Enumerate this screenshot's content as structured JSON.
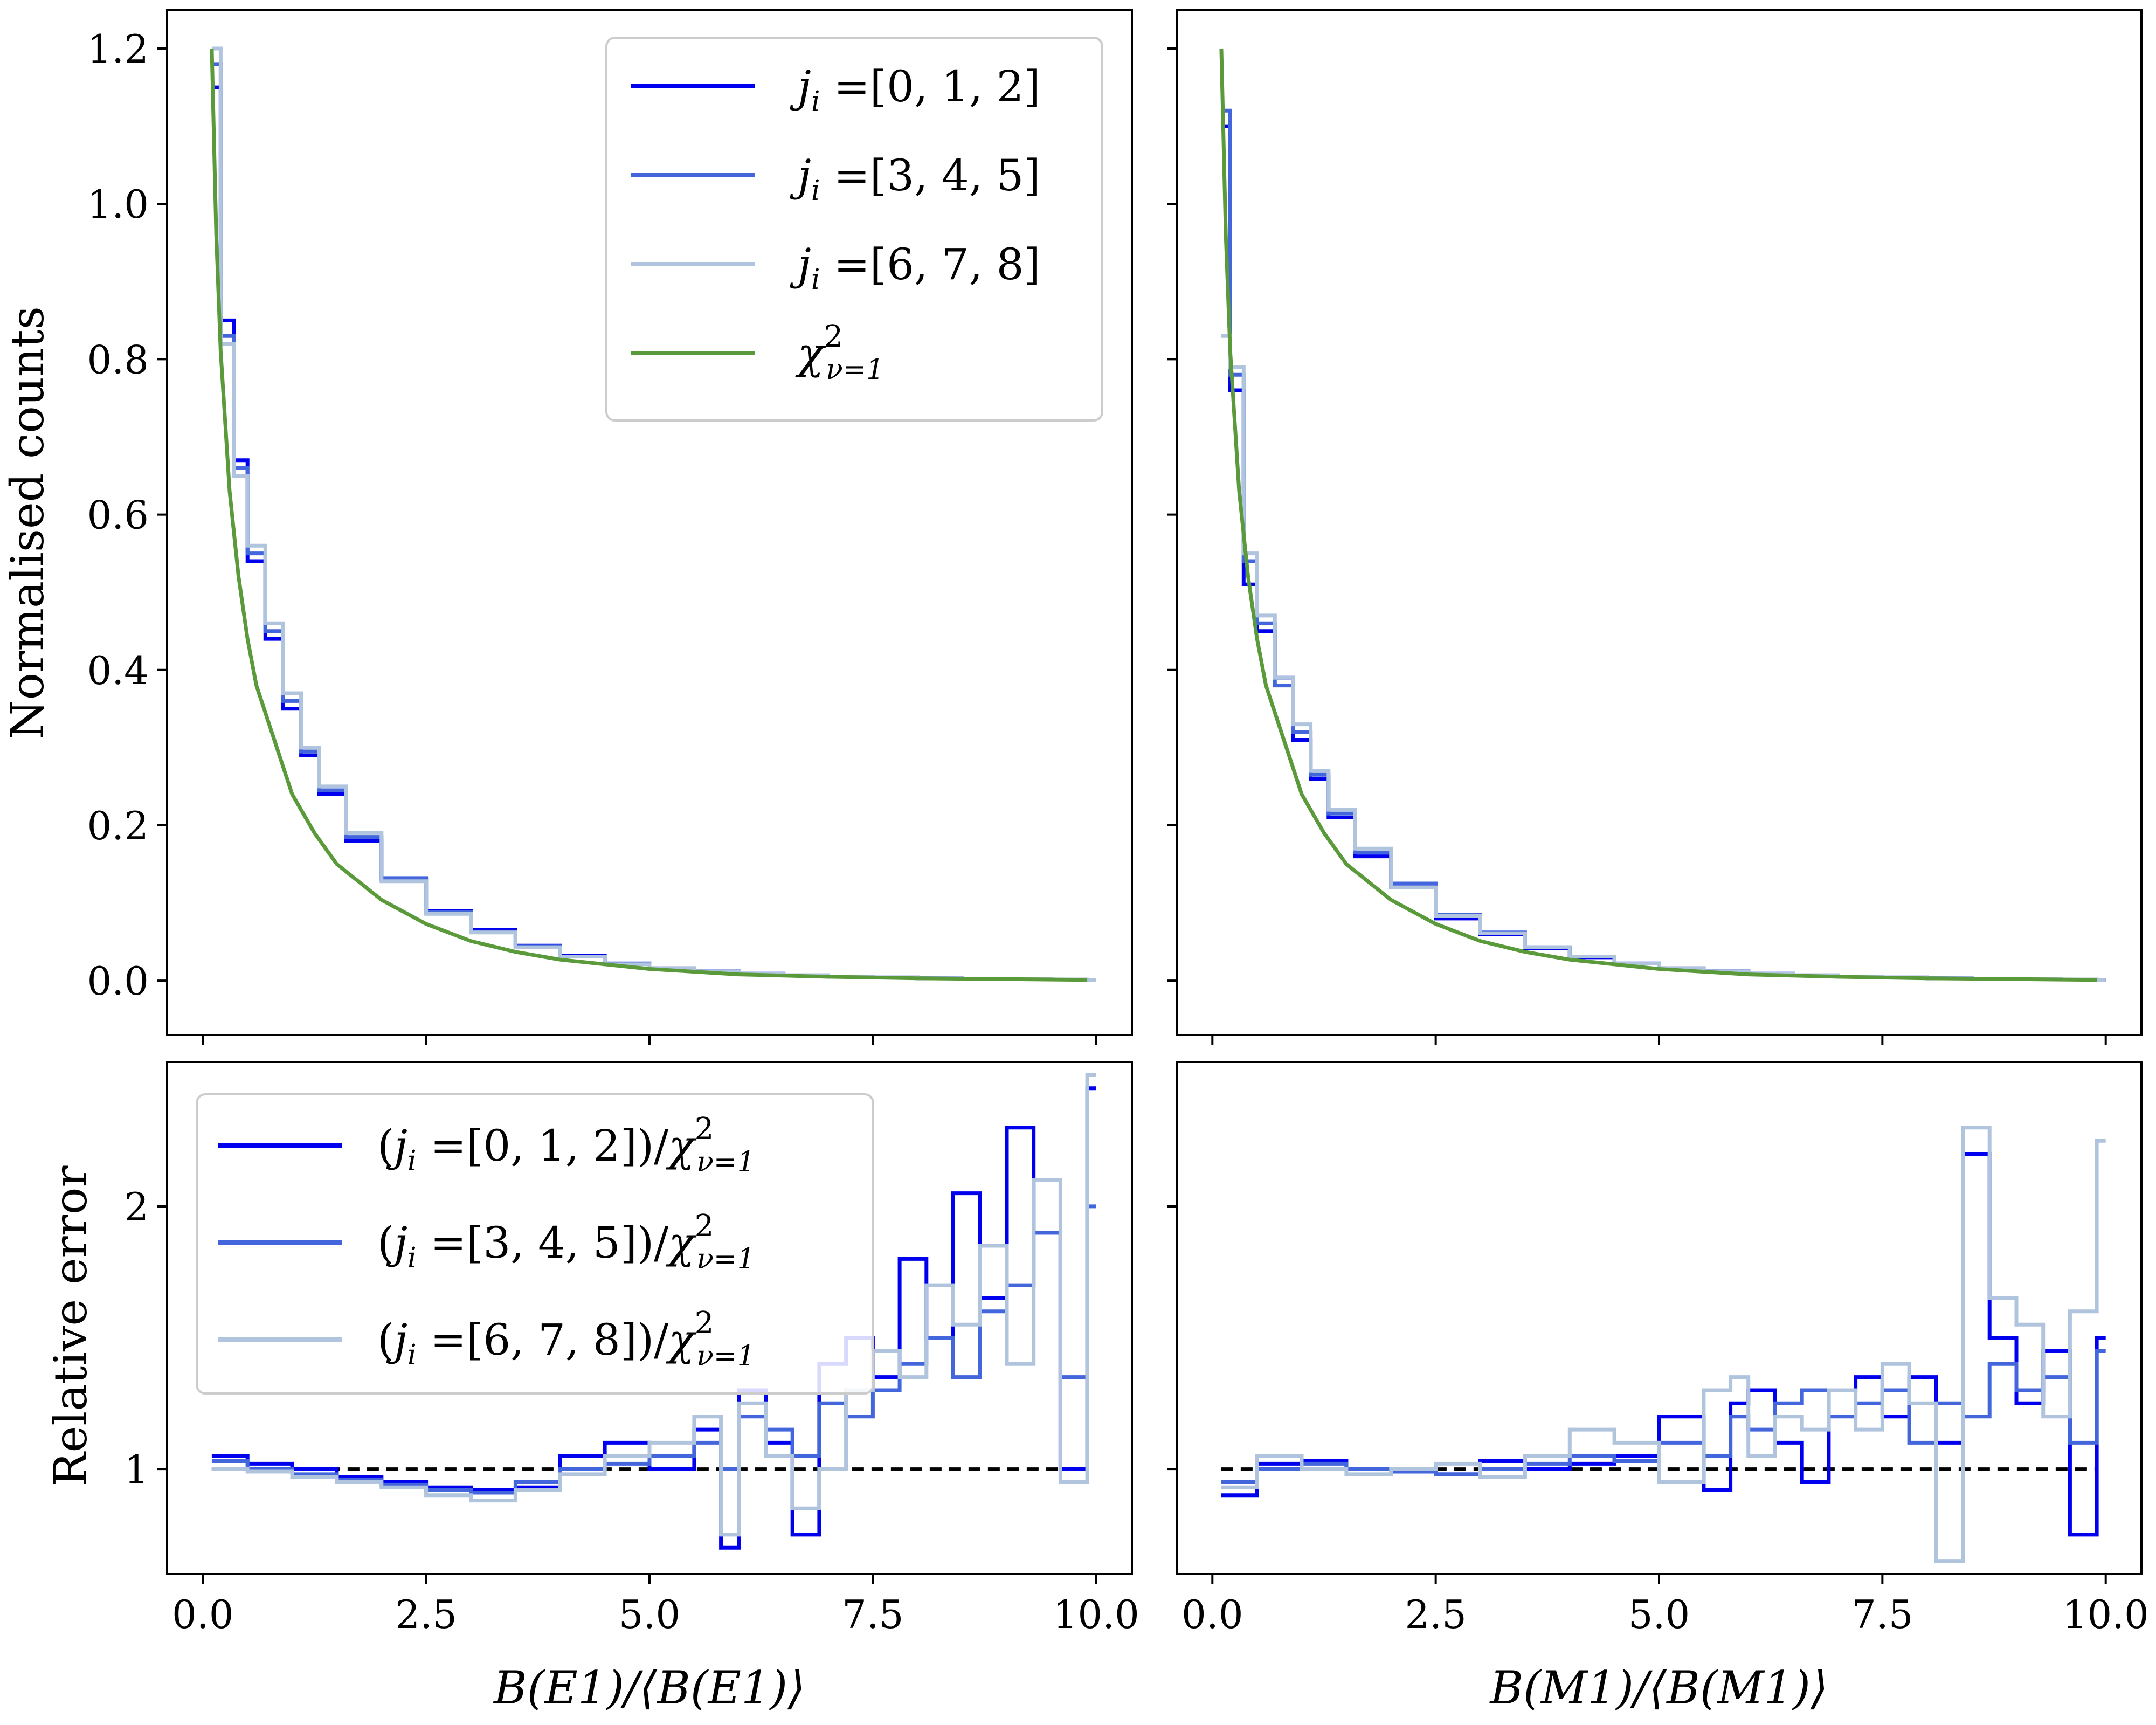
{
  "chart_data": [
    {
      "id": "E1-counts",
      "type": "line",
      "ylabel": "Normalised counts",
      "xlim": [
        -0.4,
        10.4
      ],
      "ylim": [
        -0.07,
        1.25
      ],
      "yticks": [
        0.0,
        0.2,
        0.4,
        0.6,
        0.8,
        1.0,
        1.2
      ],
      "ytick_labels": [
        "0.0",
        "0.2",
        "0.4",
        "0.6",
        "0.8",
        "1.0",
        "1.2"
      ],
      "xticks": [
        0,
        2.5,
        5.0,
        7.5,
        10.0
      ],
      "legend": [
        "j_i =[0, 1, 2]",
        "j_i =[3, 4, 5]",
        "j_i =[6, 7, 8]",
        "χ²_{ν=1}"
      ],
      "legend_position": "top-right",
      "series": [
        {
          "name": "j_i =[0, 1, 2]",
          "style": "step",
          "x": [
            0.1,
            0.2,
            0.35,
            0.5,
            0.7,
            0.9,
            1.1,
            1.3,
            1.6,
            2.0,
            2.5,
            3.0,
            3.5,
            4.0,
            4.5,
            5.0,
            5.5,
            6.0,
            6.5,
            7.0,
            7.5,
            8.0,
            8.5,
            9.0,
            9.5,
            9.9
          ],
          "y": [
            1.15,
            0.85,
            0.67,
            0.54,
            0.44,
            0.35,
            0.29,
            0.24,
            0.18,
            0.13,
            0.09,
            0.065,
            0.045,
            0.032,
            0.022,
            0.016,
            0.012,
            0.009,
            0.007,
            0.005,
            0.004,
            0.003,
            0.0025,
            0.002,
            0.0015,
            0.001
          ]
        },
        {
          "name": "j_i =[3, 4, 5]",
          "style": "step",
          "x": [
            0.1,
            0.2,
            0.35,
            0.5,
            0.7,
            0.9,
            1.1,
            1.3,
            1.6,
            2.0,
            2.5,
            3.0,
            3.5,
            4.0,
            4.5,
            5.0,
            5.5,
            6.0,
            6.5,
            7.0,
            7.5,
            8.0,
            8.5,
            9.0,
            9.5,
            9.9
          ],
          "y": [
            1.18,
            0.83,
            0.66,
            0.55,
            0.45,
            0.36,
            0.295,
            0.245,
            0.185,
            0.132,
            0.088,
            0.063,
            0.044,
            0.031,
            0.022,
            0.016,
            0.012,
            0.009,
            0.007,
            0.005,
            0.004,
            0.003,
            0.0025,
            0.002,
            0.0015,
            0.001
          ]
        },
        {
          "name": "j_i =[6, 7, 8]",
          "style": "step",
          "x": [
            0.1,
            0.2,
            0.35,
            0.5,
            0.7,
            0.9,
            1.1,
            1.3,
            1.6,
            2.0,
            2.5,
            3.0,
            3.5,
            4.0,
            4.5,
            5.0,
            5.5,
            6.0,
            6.5,
            7.0,
            7.5,
            8.0,
            8.5,
            9.0,
            9.5,
            9.9
          ],
          "y": [
            1.2,
            0.82,
            0.65,
            0.56,
            0.46,
            0.37,
            0.3,
            0.25,
            0.19,
            0.128,
            0.086,
            0.062,
            0.043,
            0.031,
            0.021,
            0.016,
            0.012,
            0.009,
            0.007,
            0.005,
            0.004,
            0.003,
            0.0025,
            0.002,
            0.0015,
            0.001
          ]
        },
        {
          "name": "χ²_{ν=1}",
          "style": "curve",
          "x": [
            0.1,
            0.15,
            0.2,
            0.3,
            0.4,
            0.5,
            0.6,
            0.8,
            1.0,
            1.25,
            1.5,
            2.0,
            2.5,
            3.0,
            3.5,
            4.0,
            5.0,
            6.0,
            7.0,
            8.0,
            9.0,
            9.9
          ],
          "y": [
            1.2,
            0.96,
            0.81,
            0.63,
            0.52,
            0.44,
            0.38,
            0.31,
            0.24,
            0.19,
            0.15,
            0.104,
            0.073,
            0.051,
            0.037,
            0.027,
            0.015,
            0.008,
            0.005,
            0.003,
            0.002,
            0.001
          ]
        }
      ]
    },
    {
      "id": "M1-counts",
      "type": "line",
      "xlim": [
        -0.4,
        10.4
      ],
      "ylim": [
        -0.07,
        1.25
      ],
      "yticks": [
        0.0,
        0.2,
        0.4,
        0.6,
        0.8,
        1.0,
        1.2
      ],
      "xticks": [
        0,
        2.5,
        5.0,
        7.5,
        10.0
      ],
      "series": [
        {
          "name": "j_i =[0, 1, 2]",
          "style": "step",
          "x": [
            0.1,
            0.2,
            0.35,
            0.5,
            0.7,
            0.9,
            1.1,
            1.3,
            1.6,
            2.0,
            2.5,
            3.0,
            3.5,
            4.0,
            4.5,
            5.0,
            5.5,
            6.0,
            6.5,
            7.0,
            7.5,
            8.0,
            8.5,
            9.0,
            9.5,
            9.9
          ],
          "y": [
            1.1,
            0.76,
            0.51,
            0.45,
            0.39,
            0.31,
            0.26,
            0.21,
            0.16,
            0.12,
            0.08,
            0.06,
            0.042,
            0.03,
            0.022,
            0.016,
            0.012,
            0.009,
            0.007,
            0.005,
            0.004,
            0.003,
            0.0025,
            0.002,
            0.0015,
            0.001
          ]
        },
        {
          "name": "j_i =[3, 4, 5]",
          "style": "step",
          "x": [
            0.1,
            0.2,
            0.35,
            0.5,
            0.7,
            0.9,
            1.1,
            1.3,
            1.6,
            2.0,
            2.5,
            3.0,
            3.5,
            4.0,
            4.5,
            5.0,
            5.5,
            6.0,
            6.5,
            7.0,
            7.5,
            8.0,
            8.5,
            9.0,
            9.5,
            9.9
          ],
          "y": [
            1.12,
            0.78,
            0.54,
            0.46,
            0.38,
            0.32,
            0.265,
            0.215,
            0.165,
            0.125,
            0.085,
            0.062,
            0.043,
            0.031,
            0.022,
            0.016,
            0.012,
            0.009,
            0.007,
            0.005,
            0.004,
            0.003,
            0.0025,
            0.002,
            0.0015,
            0.001
          ]
        },
        {
          "name": "j_i =[6, 7, 8]",
          "style": "step",
          "x": [
            0.1,
            0.2,
            0.35,
            0.5,
            0.7,
            0.9,
            1.1,
            1.3,
            1.6,
            2.0,
            2.5,
            3.0,
            3.5,
            4.0,
            4.5,
            5.0,
            5.5,
            6.0,
            6.5,
            7.0,
            7.5,
            8.0,
            8.5,
            9.0,
            9.5,
            9.9
          ],
          "y": [
            0.83,
            0.79,
            0.55,
            0.47,
            0.39,
            0.33,
            0.27,
            0.22,
            0.17,
            0.12,
            0.083,
            0.061,
            0.043,
            0.031,
            0.022,
            0.016,
            0.012,
            0.009,
            0.007,
            0.005,
            0.004,
            0.003,
            0.0025,
            0.002,
            0.0015,
            0.001
          ]
        },
        {
          "name": "χ²_{ν=1}",
          "style": "curve",
          "x": [
            0.1,
            0.15,
            0.2,
            0.3,
            0.4,
            0.5,
            0.6,
            0.8,
            1.0,
            1.25,
            1.5,
            2.0,
            2.5,
            3.0,
            3.5,
            4.0,
            5.0,
            6.0,
            7.0,
            8.0,
            9.0,
            9.9
          ],
          "y": [
            1.2,
            0.96,
            0.81,
            0.63,
            0.52,
            0.44,
            0.38,
            0.31,
            0.24,
            0.19,
            0.15,
            0.104,
            0.073,
            0.051,
            0.037,
            0.027,
            0.015,
            0.008,
            0.005,
            0.003,
            0.002,
            0.001
          ]
        }
      ]
    },
    {
      "id": "E1-ratio",
      "type": "line",
      "ylabel": "Relative error",
      "xlabel": "B(E1)/⟨B(E1)⟩",
      "xlim": [
        -0.4,
        10.4
      ],
      "ylim": [
        0.6,
        2.55
      ],
      "yticks": [
        1,
        2
      ],
      "ytick_labels": [
        "1",
        "2"
      ],
      "xticks": [
        0,
        2.5,
        5.0,
        7.5,
        10.0
      ],
      "xtick_labels": [
        "0.0",
        "2.5",
        "5.0",
        "7.5",
        "10.0"
      ],
      "reference_line": 1,
      "legend": [
        "(j_i =[0, 1, 2])/χ²_{ν=1}",
        "(j_i =[3, 4, 5])/χ²_{ν=1}",
        "(j_i =[6, 7, 8])/χ²_{ν=1}"
      ],
      "legend_position": "upper-left",
      "series": [
        {
          "name": "(j_i =[0, 1, 2])/χ²_{ν=1}",
          "style": "step",
          "x": [
            0.1,
            0.5,
            1.0,
            1.5,
            2.0,
            2.5,
            3.0,
            3.5,
            4.0,
            4.5,
            5.0,
            5.5,
            5.8,
            6.0,
            6.3,
            6.6,
            6.9,
            7.2,
            7.5,
            7.8,
            8.1,
            8.4,
            8.7,
            9.0,
            9.3,
            9.6,
            9.9
          ],
          "y": [
            1.05,
            1.02,
            1.0,
            0.97,
            0.95,
            0.93,
            0.92,
            0.93,
            1.05,
            1.1,
            1.0,
            1.15,
            0.7,
            1.3,
            1.1,
            0.75,
            1.4,
            1.5,
            1.35,
            1.8,
            1.5,
            2.05,
            1.65,
            2.3,
            1.9,
            1.0,
            2.45
          ]
        },
        {
          "name": "(j_i =[3, 4, 5])/χ²_{ν=1}",
          "style": "step",
          "x": [
            0.1,
            0.5,
            1.0,
            1.5,
            2.0,
            2.5,
            3.0,
            3.5,
            4.0,
            4.5,
            5.0,
            5.5,
            5.8,
            6.0,
            6.3,
            6.6,
            6.9,
            7.2,
            7.5,
            7.8,
            8.1,
            8.4,
            8.7,
            9.0,
            9.3,
            9.6,
            9.9
          ],
          "y": [
            1.03,
            1.0,
            0.98,
            0.96,
            0.94,
            0.92,
            0.91,
            0.95,
            1.0,
            1.02,
            1.05,
            1.1,
            1.0,
            1.2,
            1.15,
            1.05,
            1.25,
            1.2,
            1.3,
            1.4,
            1.5,
            1.35,
            1.6,
            1.7,
            1.9,
            1.35,
            2.0
          ]
        },
        {
          "name": "(j_i =[6, 7, 8])/χ²_{ν=1}",
          "style": "step",
          "x": [
            0.1,
            0.5,
            1.0,
            1.5,
            2.0,
            2.5,
            3.0,
            3.5,
            4.0,
            4.5,
            5.0,
            5.5,
            5.8,
            6.0,
            6.3,
            6.6,
            6.9,
            7.2,
            7.5,
            7.8,
            8.1,
            8.4,
            8.7,
            9.0,
            9.3,
            9.6,
            9.9
          ],
          "y": [
            1.0,
            0.99,
            0.97,
            0.95,
            0.93,
            0.9,
            0.88,
            0.92,
            0.98,
            1.05,
            1.1,
            1.2,
            0.75,
            1.25,
            1.05,
            0.85,
            1.0,
            1.3,
            1.45,
            1.35,
            1.7,
            1.55,
            1.85,
            1.4,
            2.1,
            0.95,
            2.5
          ]
        }
      ]
    },
    {
      "id": "M1-ratio",
      "type": "line",
      "xlabel": "B(M1)/⟨B(M1)⟩",
      "xlim": [
        -0.4,
        10.4
      ],
      "ylim": [
        0.6,
        2.55
      ],
      "yticks": [
        1,
        2
      ],
      "xticks": [
        0,
        2.5,
        5.0,
        7.5,
        10.0
      ],
      "xtick_labels": [
        "0.0",
        "2.5",
        "5.0",
        "7.5",
        "10.0"
      ],
      "reference_line": 1,
      "series": [
        {
          "name": "(j_i =[0, 1, 2])/χ²_{ν=1}",
          "style": "step",
          "x": [
            0.1,
            0.5,
            1.0,
            1.5,
            2.0,
            2.5,
            3.0,
            3.5,
            4.0,
            4.5,
            5.0,
            5.5,
            5.8,
            6.0,
            6.3,
            6.6,
            6.9,
            7.2,
            7.5,
            7.8,
            8.1,
            8.4,
            8.7,
            9.0,
            9.3,
            9.6,
            9.9
          ],
          "y": [
            0.9,
            1.02,
            1.03,
            1.0,
            1.0,
            0.98,
            1.03,
            1.0,
            1.02,
            1.05,
            1.2,
            0.92,
            1.25,
            1.3,
            1.1,
            0.95,
            1.3,
            1.35,
            1.2,
            1.35,
            1.1,
            2.2,
            1.5,
            1.25,
            1.45,
            0.75,
            1.5
          ]
        },
        {
          "name": "(j_i =[3, 4, 5])/χ²_{ν=1}",
          "style": "step",
          "x": [
            0.1,
            0.5,
            1.0,
            1.5,
            2.0,
            2.5,
            3.0,
            3.5,
            4.0,
            4.5,
            5.0,
            5.5,
            5.8,
            6.0,
            6.3,
            6.6,
            6.9,
            7.2,
            7.5,
            7.8,
            8.1,
            8.4,
            8.7,
            9.0,
            9.3,
            9.6,
            9.9
          ],
          "y": [
            0.95,
            1.0,
            1.02,
            1.0,
            0.99,
            0.98,
            1.0,
            1.02,
            1.05,
            1.03,
            1.1,
            1.05,
            1.2,
            1.15,
            1.25,
            1.3,
            1.2,
            1.25,
            1.3,
            1.1,
            1.25,
            1.2,
            1.4,
            1.3,
            1.35,
            1.1,
            1.45
          ]
        },
        {
          "name": "(j_i =[6, 7, 8])/χ²_{ν=1}",
          "style": "step",
          "x": [
            0.1,
            0.5,
            1.0,
            1.5,
            2.0,
            2.5,
            3.0,
            3.5,
            4.0,
            4.5,
            5.0,
            5.5,
            5.8,
            6.0,
            6.3,
            6.6,
            6.9,
            7.2,
            7.5,
            7.8,
            8.1,
            8.4,
            8.7,
            9.0,
            9.3,
            9.6,
            9.9
          ],
          "y": [
            0.93,
            1.05,
            1.0,
            0.98,
            1.0,
            1.02,
            0.97,
            1.05,
            1.15,
            1.1,
            0.95,
            1.3,
            1.35,
            1.05,
            1.2,
            1.15,
            1.3,
            1.15,
            1.4,
            1.25,
            0.65,
            2.3,
            1.65,
            1.55,
            1.2,
            1.6,
            2.25
          ]
        }
      ]
    }
  ],
  "colors": {
    "series_dark": "#0000ee",
    "series_mid": "#4466dd",
    "series_light": "#b0c4de",
    "chi2": "#5a9a3a",
    "refline": "#000000"
  },
  "axis_text": {
    "y_counts": "Normalised counts",
    "y_ratio": "Relative error",
    "x_e1": "B(E1)/⟨B(E1)⟩",
    "x_m1": "B(M1)/⟨B(M1)⟩"
  },
  "legend_top": [
    {
      "label": "j",
      "sub": "i",
      "rest": " =[0, 1, 2]"
    },
    {
      "label": "j",
      "sub": "i",
      "rest": " =[3, 4, 5]"
    },
    {
      "label": "j",
      "sub": "i",
      "rest": " =[6, 7, 8]"
    },
    {
      "label": "χ",
      "sup": "2",
      "sub": "ν=1",
      "rest": ""
    }
  ],
  "legend_bottom": [
    {
      "pre": "(",
      "label": "j",
      "sub": "i",
      "mid": " =[0, 1, 2])/",
      "chi": "χ",
      "sup": "2",
      "csub": "ν=1"
    },
    {
      "pre": "(",
      "label": "j",
      "sub": "i",
      "mid": " =[3, 4, 5])/",
      "chi": "χ",
      "sup": "2",
      "csub": "ν=1"
    },
    {
      "pre": "(",
      "label": "j",
      "sub": "i",
      "mid": " =[6, 7, 8])/",
      "chi": "χ",
      "sup": "2",
      "csub": "ν=1"
    }
  ]
}
